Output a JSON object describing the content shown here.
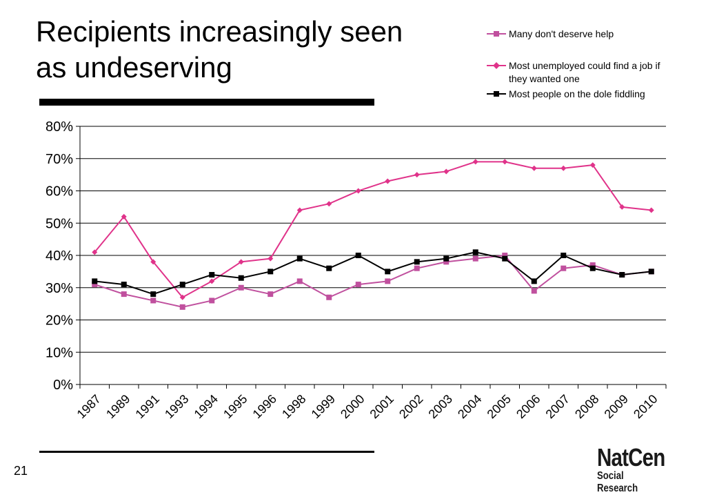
{
  "slide": {
    "title_line1": "Recipients increasingly seen",
    "title_line2": "as undeserving",
    "number": "21",
    "logo_main": "NatCen",
    "logo_sub": "Social Research"
  },
  "chart_data": {
    "type": "line",
    "categories": [
      "1987",
      "1989",
      "1991",
      "1993",
      "1994",
      "1995",
      "1996",
      "1998",
      "1999",
      "2000",
      "2001",
      "2002",
      "2003",
      "2004",
      "2005",
      "2006",
      "2007",
      "2008",
      "2009",
      "2010"
    ],
    "ylim": [
      0,
      80
    ],
    "yticks": [
      0,
      10,
      20,
      30,
      40,
      50,
      60,
      70,
      80
    ],
    "ytick_labels": [
      "0%",
      "10%",
      "20%",
      "30%",
      "40%",
      "50%",
      "60%",
      "70%",
      "80%"
    ],
    "grid": "horizontal",
    "legend_position": "top-right",
    "series": [
      {
        "name": "Many don't deserve help",
        "color": "#c0509e",
        "marker": "square",
        "values": [
          31,
          28,
          26,
          24,
          26,
          30,
          28,
          32,
          27,
          31,
          32,
          36,
          38,
          39,
          40,
          29,
          36,
          37,
          34,
          35
        ]
      },
      {
        "name": "Most unemployed could find a job if they wanted one",
        "name_line1": "Most unemployed could find a job if",
        "name_line2": "they wanted one",
        "color": "#e0338a",
        "marker": "diamond",
        "values": [
          41,
          52,
          38,
          27,
          32,
          38,
          39,
          54,
          56,
          60,
          63,
          65,
          66,
          69,
          69,
          67,
          67,
          68,
          55,
          54
        ]
      },
      {
        "name": "Most people on the dole fiddling",
        "color": "#000000",
        "marker": "square",
        "values": [
          32,
          31,
          28,
          31,
          34,
          33,
          35,
          39,
          36,
          40,
          35,
          38,
          39,
          41,
          39,
          32,
          40,
          36,
          34,
          35
        ]
      }
    ]
  }
}
